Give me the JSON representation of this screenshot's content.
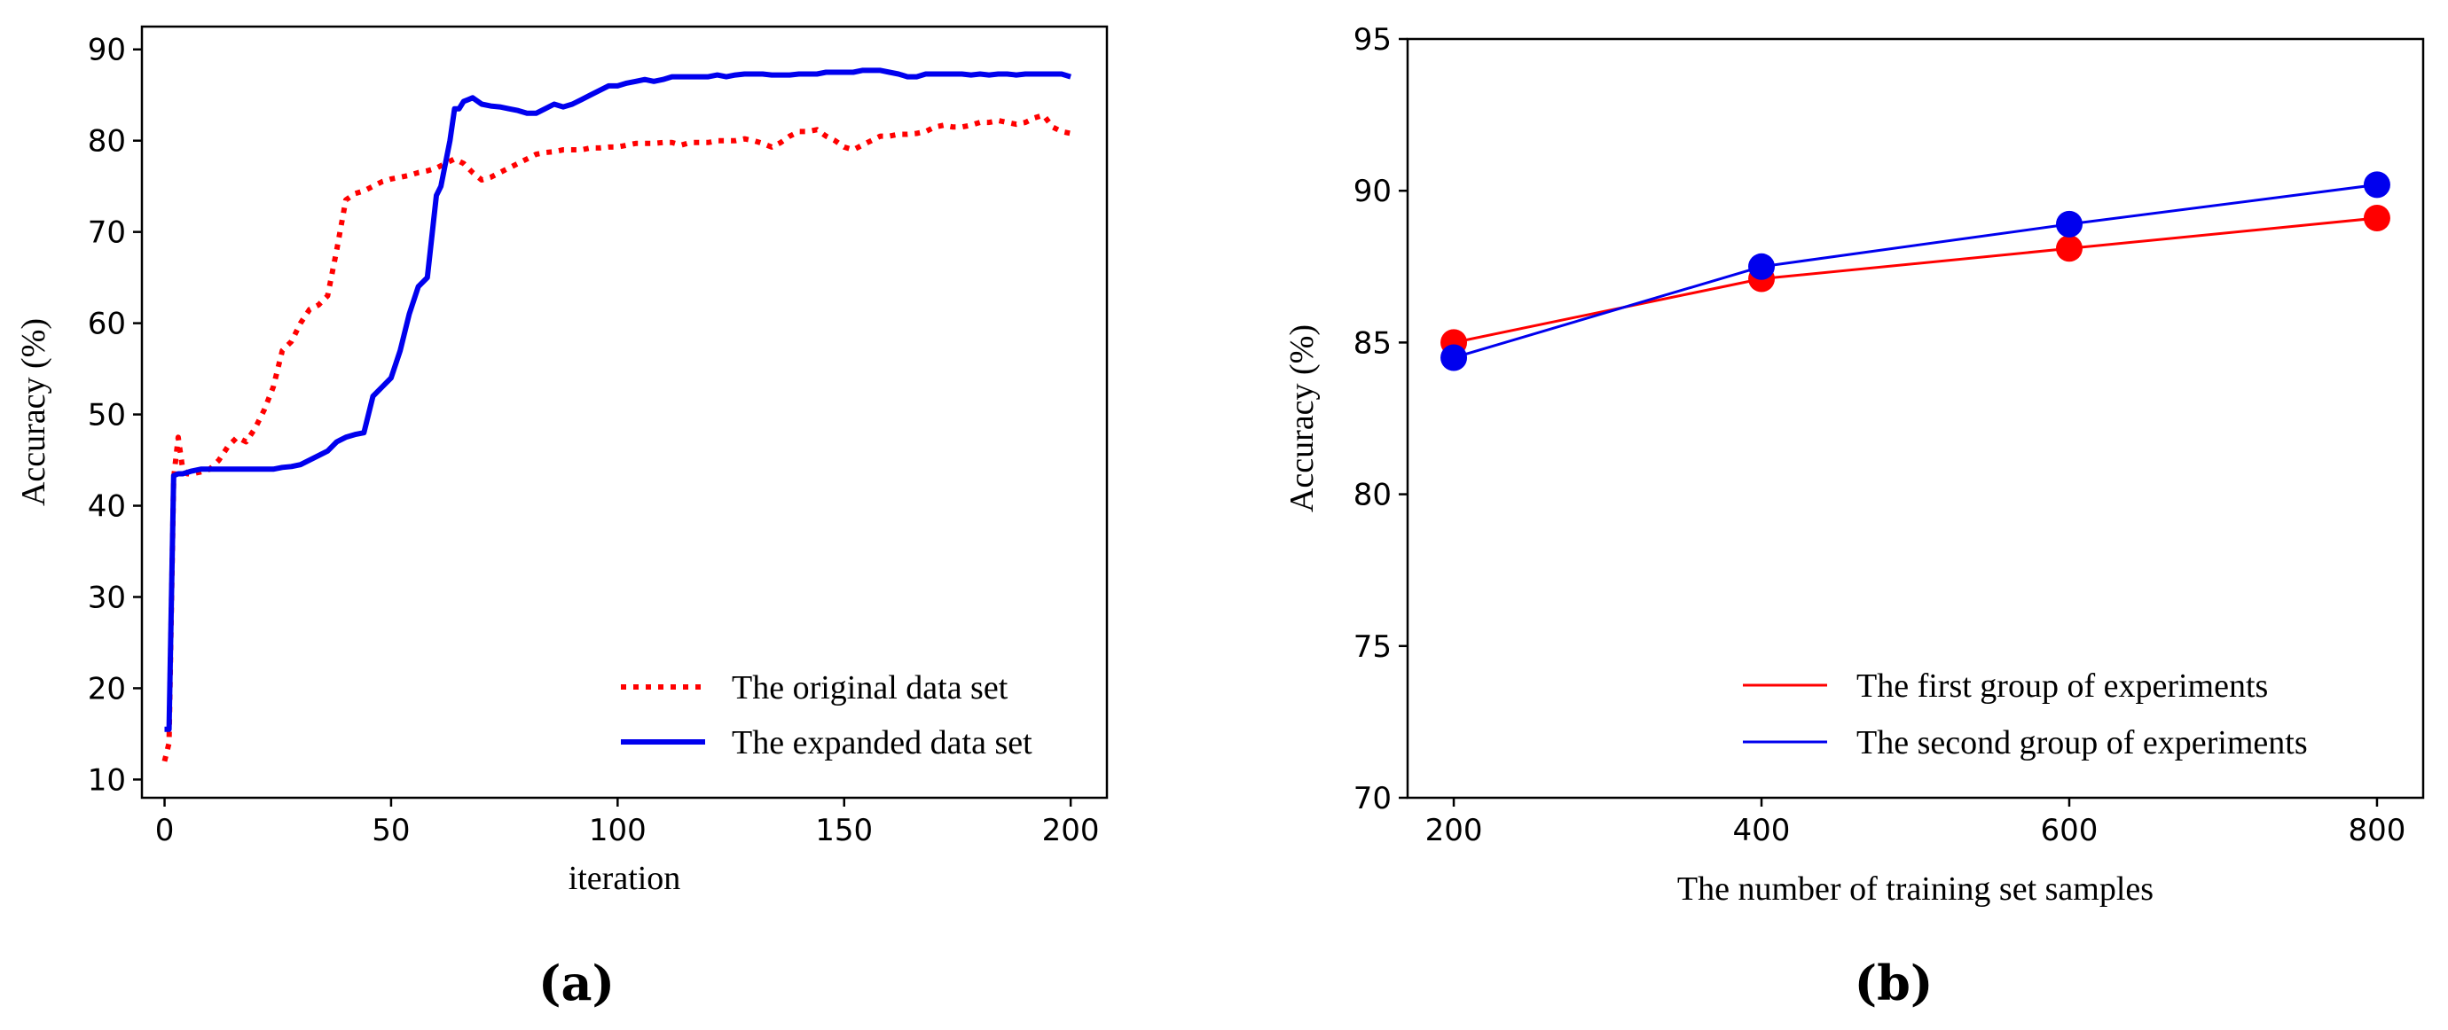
{
  "chart_data": [
    {
      "panel_label": "(a)",
      "type": "line",
      "xlabel": "iteration",
      "ylabel": "Accuracy (%)",
      "xlim": [
        -5,
        208
      ],
      "ylim": [
        8,
        92.5
      ],
      "xticks": [
        0,
        50,
        100,
        150,
        200
      ],
      "yticks": [
        10,
        20,
        30,
        40,
        50,
        60,
        70,
        80,
        90
      ],
      "grid": false,
      "legend_position": "lower-right",
      "series": [
        {
          "name": "The original data set",
          "color": "#ff0000",
          "style": "dotted",
          "x": [
            0,
            1,
            2,
            3,
            4,
            5,
            6,
            8,
            10,
            12,
            14,
            16,
            18,
            20,
            22,
            24,
            26,
            28,
            30,
            32,
            34,
            36,
            38,
            40,
            42,
            44,
            46,
            48,
            50,
            52,
            54,
            56,
            58,
            60,
            62,
            64,
            66,
            68,
            70,
            72,
            74,
            76,
            78,
            80,
            82,
            84,
            86,
            88,
            90,
            92,
            94,
            96,
            98,
            100,
            102,
            104,
            106,
            108,
            110,
            112,
            114,
            116,
            118,
            120,
            122,
            124,
            126,
            128,
            130,
            132,
            134,
            136,
            138,
            140,
            142,
            144,
            146,
            148,
            150,
            152,
            154,
            156,
            158,
            160,
            162,
            164,
            166,
            168,
            170,
            172,
            174,
            176,
            178,
            180,
            182,
            184,
            186,
            188,
            190,
            192,
            194,
            196,
            198,
            200
          ],
          "values": [
            12,
            14,
            43,
            47.5,
            44,
            43.5,
            43.5,
            43.7,
            44,
            45,
            46.5,
            47.5,
            47,
            48.5,
            50.5,
            53,
            57,
            58,
            60,
            61.5,
            62,
            63,
            68,
            73.5,
            74.2,
            74.5,
            75,
            75.5,
            75.8,
            76,
            76.2,
            76.5,
            76.7,
            77,
            77.5,
            78,
            77.5,
            76.5,
            75.7,
            76,
            76.5,
            77,
            77.5,
            78,
            78.5,
            78.7,
            78.8,
            79,
            79,
            79,
            79.2,
            79.2,
            79.3,
            79.3,
            79.5,
            79.7,
            79.7,
            79.7,
            79.8,
            79.8,
            79.5,
            79.8,
            79.8,
            79.8,
            80,
            80,
            80,
            80.2,
            80,
            79.7,
            79.3,
            79.8,
            80.5,
            81,
            81,
            81.2,
            80.5,
            80,
            79.3,
            79,
            79.5,
            80,
            80.5,
            80.5,
            80.7,
            80.7,
            80.8,
            81,
            81.5,
            81.7,
            81.5,
            81.5,
            81.7,
            82,
            82,
            82.2,
            82,
            81.8,
            82,
            82.5,
            82.8,
            81.5,
            81,
            80.8
          ]
        },
        {
          "name": "The expanded data set",
          "color": "#0000ee",
          "style": "solid",
          "x": [
            0,
            1,
            2,
            3,
            4,
            6,
            8,
            10,
            12,
            14,
            16,
            18,
            20,
            22,
            24,
            26,
            28,
            30,
            32,
            34,
            36,
            38,
            40,
            42,
            44,
            46,
            48,
            50,
            52,
            54,
            56,
            58,
            60,
            61,
            62,
            63,
            64,
            65,
            66,
            67,
            68,
            70,
            72,
            74,
            76,
            78,
            80,
            82,
            84,
            86,
            88,
            90,
            92,
            94,
            96,
            98,
            100,
            102,
            104,
            106,
            108,
            110,
            112,
            114,
            116,
            118,
            120,
            122,
            124,
            126,
            128,
            130,
            132,
            134,
            136,
            138,
            140,
            142,
            144,
            146,
            148,
            150,
            152,
            154,
            156,
            158,
            160,
            162,
            164,
            166,
            168,
            170,
            172,
            174,
            176,
            178,
            180,
            182,
            184,
            186,
            188,
            190,
            192,
            194,
            196,
            198,
            200
          ],
          "values": [
            15.5,
            15.5,
            43.3,
            43.5,
            43.5,
            43.8,
            44,
            44,
            44,
            44,
            44,
            44,
            44,
            44,
            44,
            44.2,
            44.3,
            44.5,
            45,
            45.5,
            46,
            47,
            47.5,
            47.8,
            48,
            52,
            53,
            54,
            57,
            61,
            64,
            65,
            74,
            75,
            77.5,
            80,
            83.5,
            83.5,
            84.3,
            84.5,
            84.7,
            84,
            83.8,
            83.7,
            83.5,
            83.3,
            83,
            83,
            83.5,
            84,
            83.7,
            84,
            84.5,
            85,
            85.5,
            86,
            86,
            86.3,
            86.5,
            86.7,
            86.5,
            86.7,
            87,
            87,
            87,
            87,
            87,
            87.2,
            87,
            87.2,
            87.3,
            87.3,
            87.3,
            87.2,
            87.2,
            87.2,
            87.3,
            87.3,
            87.3,
            87.5,
            87.5,
            87.5,
            87.5,
            87.7,
            87.7,
            87.7,
            87.5,
            87.3,
            87,
            87,
            87.3,
            87.3,
            87.3,
            87.3,
            87.3,
            87.2,
            87.3,
            87.2,
            87.3,
            87.3,
            87.2,
            87.3,
            87.3,
            87.3,
            87.3,
            87.3,
            87
          ]
        }
      ]
    },
    {
      "panel_label": "(b)",
      "type": "line",
      "xlabel": "The number of training set samples",
      "ylabel": "Accuracy (%)",
      "xlim": [
        170,
        830
      ],
      "ylim": [
        70,
        95
      ],
      "xticks": [
        200,
        400,
        600,
        800
      ],
      "yticks": [
        70,
        75,
        80,
        85,
        90,
        95
      ],
      "grid": false,
      "legend_position": "lower-right",
      "categories": [
        200,
        400,
        600,
        800
      ],
      "series": [
        {
          "name": "The first group of experiments",
          "color": "#ff0000",
          "style": "solid",
          "marker": "circle",
          "values": [
            85.0,
            87.1,
            88.1,
            89.1
          ]
        },
        {
          "name": "The second group of experiments",
          "color": "#0000ee",
          "style": "solid",
          "marker": "circle",
          "values": [
            84.5,
            87.5,
            88.9,
            90.2
          ]
        }
      ]
    }
  ]
}
